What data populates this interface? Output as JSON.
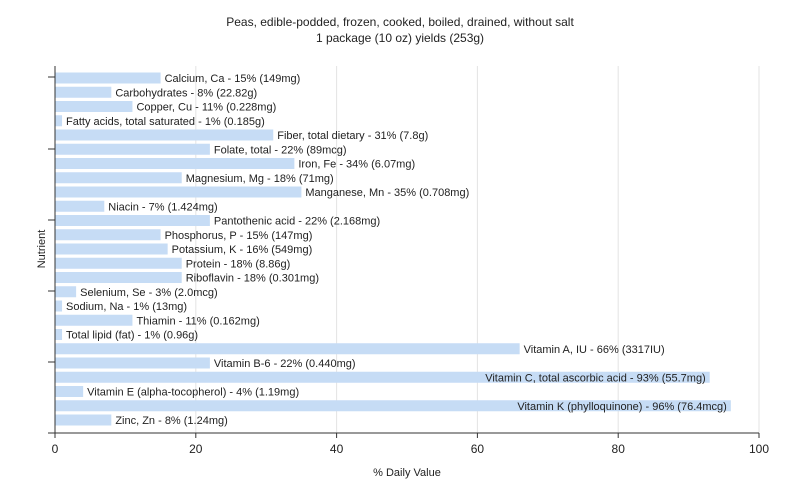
{
  "chart_data": {
    "type": "bar",
    "orientation": "horizontal",
    "title": "Peas, edible-podded, frozen, cooked, boiled, drained, without salt",
    "subtitle": "1 package (10 oz) yields (253g)",
    "xlabel": "% Daily Value",
    "ylabel": "Nutrient",
    "xlim": [
      0,
      100
    ],
    "xticks": [
      "0",
      "20",
      "40",
      "60",
      "80",
      "100"
    ],
    "grid": true,
    "bar_color": "#c6dcf5",
    "categories": [
      "Calcium, Ca",
      "Carbohydrates",
      "Copper, Cu",
      "Fatty acids, total saturated",
      "Fiber, total dietary",
      "Folate, total",
      "Iron, Fe",
      "Magnesium, Mg",
      "Manganese, Mn",
      "Niacin",
      "Pantothenic acid",
      "Phosphorus, P",
      "Potassium, K",
      "Protein",
      "Riboflavin",
      "Selenium, Se",
      "Sodium, Na",
      "Thiamin",
      "Total lipid (fat)",
      "Vitamin A, IU",
      "Vitamin B-6",
      "Vitamin C, total ascorbic acid",
      "Vitamin E (alpha-tocopherol)",
      "Vitamin K (phylloquinone)",
      "Zinc, Zn"
    ],
    "values": [
      15,
      8,
      11,
      1,
      31,
      22,
      34,
      18,
      35,
      7,
      22,
      15,
      16,
      18,
      18,
      3,
      1,
      11,
      1,
      66,
      22,
      93,
      4,
      96,
      8
    ],
    "labels": [
      "Calcium, Ca - 15% (149mg)",
      "Carbohydrates - 8% (22.82g)",
      "Copper, Cu - 11% (0.228mg)",
      "Fatty acids, total saturated - 1% (0.185g)",
      "Fiber, total dietary - 31% (7.8g)",
      "Folate, total - 22% (89mcg)",
      "Iron, Fe - 34% (6.07mg)",
      "Magnesium, Mg - 18% (71mg)",
      "Manganese, Mn - 35% (0.708mg)",
      "Niacin - 7% (1.424mg)",
      "Pantothenic acid - 22% (2.168mg)",
      "Phosphorus, P - 15% (147mg)",
      "Potassium, K - 16% (549mg)",
      "Protein - 18% (8.86g)",
      "Riboflavin - 18% (0.301mg)",
      "Selenium, Se - 3% (2.0mcg)",
      "Sodium, Na - 1% (13mg)",
      "Thiamin - 11% (0.162mg)",
      "Total lipid (fat) - 1% (0.96g)",
      "Vitamin A, IU - 66% (3317IU)",
      "Vitamin B-6 - 22% (0.440mg)",
      "Vitamin C, total ascorbic acid - 93% (55.7mg)",
      "Vitamin E (alpha-tocopherol) - 4% (1.19mg)",
      "Vitamin K (phylloquinone) - 96% (76.4mcg)",
      "Zinc, Zn - 8% (1.24mg)"
    ]
  }
}
